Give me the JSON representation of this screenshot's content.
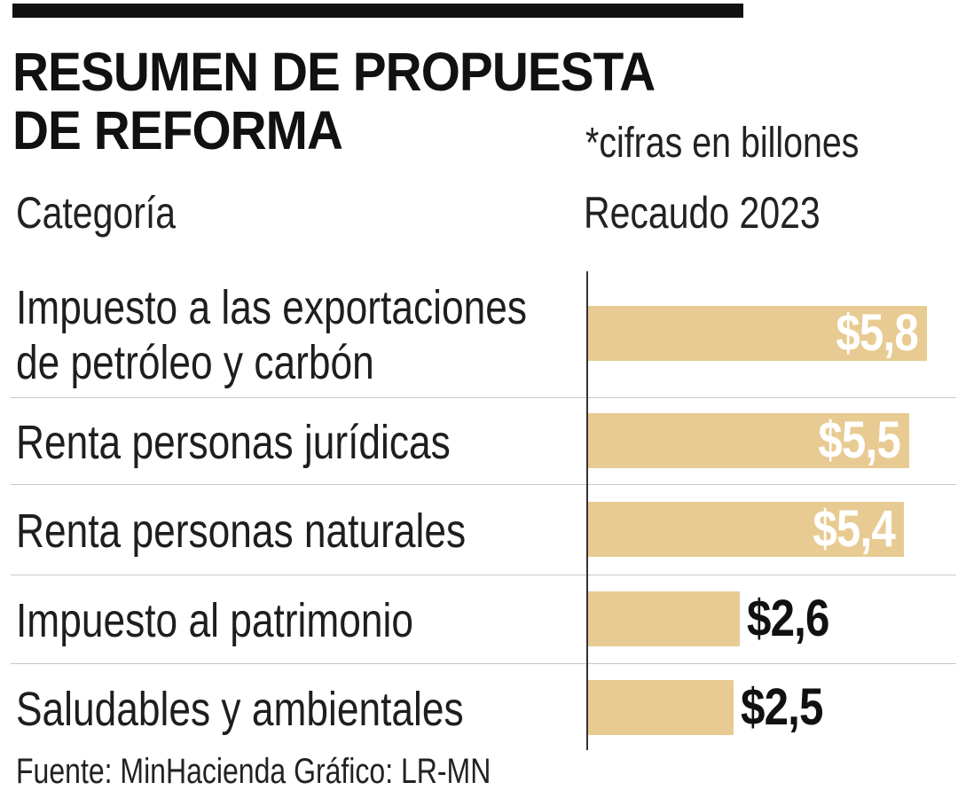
{
  "header": {
    "title_line1": "RESUMEN DE PROPUESTA",
    "title_line2": "DE REFORMA",
    "units_note": "*cifras en billones",
    "category_header": "Categoría",
    "value_header": "Recaudo 2023"
  },
  "chart_data": {
    "type": "bar",
    "orientation": "horizontal",
    "categories_lines": [
      [
        "Impuesto a las exportaciones",
        "de petróleo y carbón"
      ],
      [
        "Renta personas jurídicas"
      ],
      [
        "Renta personas naturales"
      ],
      [
        "Impuesto al patrimonio"
      ],
      [
        "Saludables y ambientales"
      ]
    ],
    "values": [
      5.8,
      5.5,
      5.4,
      2.6,
      2.5
    ],
    "value_labels": [
      "$5,8",
      "$5,5",
      "$5,4",
      "$2,6",
      "$2,5"
    ],
    "xlim": [
      0,
      5.8
    ],
    "bar_color": "#e8cb92",
    "grid": false
  },
  "footer": {
    "source": "Fuente: MinHacienda  Gráfico: LR-MN"
  }
}
